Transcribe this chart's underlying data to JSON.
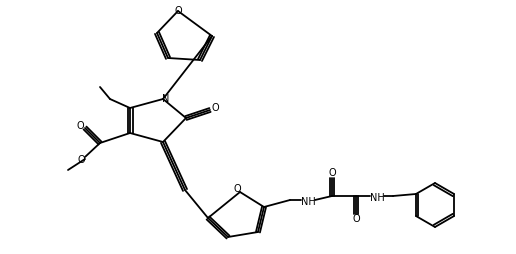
{
  "figsize": [
    5.16,
    2.54
  ],
  "dpi": 100,
  "bg_color": "white",
  "line_color": "black",
  "line_width": 1.3,
  "font_size": 7.0,
  "xlim": [
    0,
    516
  ],
  "ylim": [
    0,
    254
  ]
}
